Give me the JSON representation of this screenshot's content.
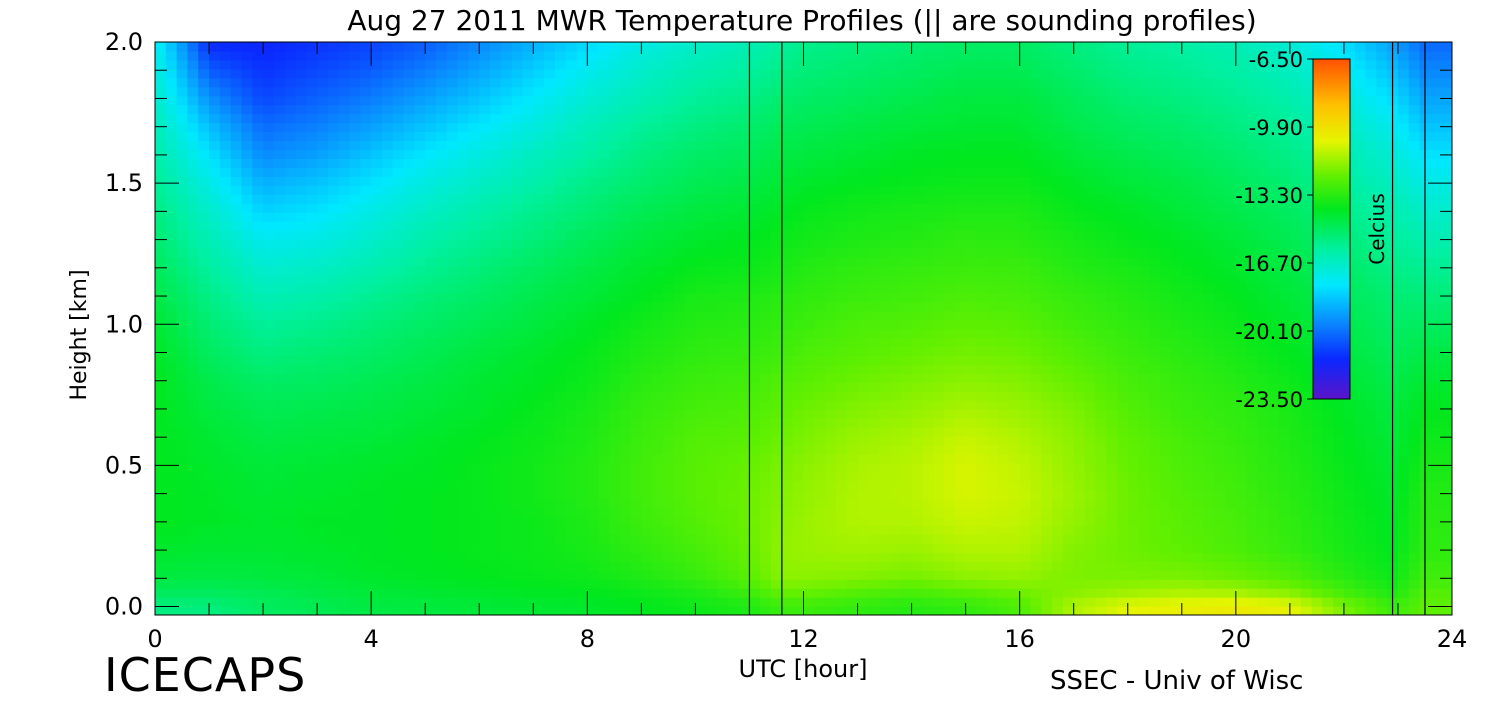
{
  "chart_data": {
    "type": "heatmap",
    "title": "Aug 27 2011 MWR Temperature Profiles (|| are sounding profiles)",
    "xlabel": "UTC [hour]",
    "ylabel": "Height [km]",
    "xlim": [
      0,
      24
    ],
    "ylim": [
      -0.03,
      2.0
    ],
    "xticks": [
      {
        "value": 0,
        "label": "0"
      },
      {
        "value": 4,
        "label": "4"
      },
      {
        "value": 8,
        "label": "8"
      },
      {
        "value": 12,
        "label": "12"
      },
      {
        "value": 16,
        "label": "16"
      },
      {
        "value": 20,
        "label": "20"
      },
      {
        "value": 24,
        "label": "24"
      }
    ],
    "yticks": [
      {
        "value": 0.0,
        "label": "0.0"
      },
      {
        "value": 0.5,
        "label": "0.5"
      },
      {
        "value": 1.0,
        "label": "1.0"
      },
      {
        "value": 1.5,
        "label": "1.5"
      },
      {
        "value": 2.0,
        "label": "2.0"
      }
    ],
    "colorbar": {
      "label": "Celcius",
      "min": -23.5,
      "max": -6.5,
      "ticks": [
        {
          "value": -6.5,
          "label": "-6.50"
        },
        {
          "value": -9.9,
          "label": "-9.90"
        },
        {
          "value": -13.3,
          "label": "-13.30"
        },
        {
          "value": -16.7,
          "label": "-16.70"
        },
        {
          "value": -20.1,
          "label": "-20.10"
        },
        {
          "value": -23.5,
          "label": "-23.50"
        }
      ],
      "stops": [
        {
          "value": -23.5,
          "color": "#5a14c8"
        },
        {
          "value": -21.5,
          "color": "#0a28ff"
        },
        {
          "value": -19.8,
          "color": "#0a82ff"
        },
        {
          "value": -17.8,
          "color": "#00e8ff"
        },
        {
          "value": -16.0,
          "color": "#00f0a0"
        },
        {
          "value": -14.0,
          "color": "#00e81e"
        },
        {
          "value": -12.3,
          "color": "#64f000"
        },
        {
          "value": -10.6,
          "color": "#e6f500"
        },
        {
          "value": -8.8,
          "color": "#ffc000"
        },
        {
          "value": -6.5,
          "color": "#ff5000"
        }
      ]
    },
    "sounding_times": [
      11.0,
      11.6,
      22.9,
      23.5
    ],
    "grid_x": [
      0,
      1,
      2,
      3,
      4,
      5,
      6,
      7,
      8,
      9,
      10,
      11,
      11.6,
      12,
      13,
      14,
      15,
      16,
      17,
      18,
      19,
      20,
      21,
      22,
      22.9,
      23.5,
      24
    ],
    "grid_y": [
      0.0,
      0.05,
      0.1,
      0.2,
      0.3,
      0.4,
      0.5,
      0.6,
      0.7,
      0.8,
      0.9,
      1.0,
      1.1,
      1.2,
      1.3,
      1.4,
      1.5,
      1.6,
      1.7,
      1.8,
      1.9,
      2.0
    ],
    "temperature": [
      [
        -15.5,
        -15.0,
        -14.5,
        -14.2,
        -14.0,
        -14.0,
        -14.0,
        -14.0,
        -14.0,
        -14.0,
        -14.1,
        -14.3,
        -14.6,
        -14.9,
        -15.2,
        -15.5,
        -15.8,
        -16.1,
        -16.4,
        -16.7,
        -17.0,
        -17.3
      ],
      [
        -15.5,
        -15.0,
        -14.6,
        -14.3,
        -14.1,
        -14.1,
        -14.2,
        -14.3,
        -14.5,
        -14.7,
        -15.0,
        -15.3,
        -15.6,
        -16.0,
        -16.4,
        -16.8,
        -17.3,
        -17.9,
        -18.6,
        -19.5,
        -20.5,
        -21.5
      ],
      [
        -15.0,
        -14.8,
        -14.5,
        -14.3,
        -14.2,
        -14.3,
        -14.4,
        -14.6,
        -14.8,
        -15.1,
        -15.5,
        -15.9,
        -16.4,
        -16.9,
        -17.5,
        -18.2,
        -18.9,
        -19.6,
        -20.2,
        -20.9,
        -21.3,
        -21.6
      ],
      [
        -14.8,
        -14.6,
        -14.4,
        -14.2,
        -14.1,
        -14.2,
        -14.3,
        -14.5,
        -14.7,
        -15.0,
        -15.3,
        -15.7,
        -16.2,
        -16.7,
        -17.3,
        -17.9,
        -18.5,
        -19.2,
        -19.8,
        -20.4,
        -20.9,
        -21.3
      ],
      [
        -14.6,
        -14.4,
        -14.2,
        -14.1,
        -14.1,
        -14.1,
        -14.2,
        -14.4,
        -14.6,
        -14.8,
        -15.1,
        -15.4,
        -15.8,
        -16.3,
        -16.8,
        -17.3,
        -17.9,
        -18.5,
        -19.2,
        -19.9,
        -20.5,
        -21.0
      ],
      [
        -14.5,
        -14.3,
        -14.1,
        -14.0,
        -14.0,
        -14.0,
        -14.1,
        -14.2,
        -14.4,
        -14.6,
        -14.8,
        -15.1,
        -15.4,
        -15.8,
        -16.2,
        -16.7,
        -17.2,
        -17.8,
        -18.5,
        -19.2,
        -19.9,
        -20.5
      ],
      [
        -14.4,
        -14.2,
        -14.0,
        -13.9,
        -13.9,
        -13.9,
        -13.9,
        -14.0,
        -14.2,
        -14.3,
        -14.5,
        -14.8,
        -15.1,
        -15.4,
        -15.8,
        -16.2,
        -16.7,
        -17.2,
        -17.8,
        -18.5,
        -19.1,
        -19.7
      ],
      [
        -14.3,
        -14.1,
        -13.9,
        -13.8,
        -13.8,
        -13.7,
        -13.7,
        -13.8,
        -13.9,
        -14.1,
        -14.2,
        -14.5,
        -14.7,
        -15.0,
        -15.4,
        -15.7,
        -16.2,
        -16.6,
        -17.2,
        -17.7,
        -18.3,
        -18.9
      ],
      [
        -14.2,
        -14.0,
        -13.8,
        -13.6,
        -13.5,
        -13.4,
        -13.4,
        -13.5,
        -13.6,
        -13.8,
        -13.9,
        -14.1,
        -14.4,
        -14.6,
        -14.9,
        -15.3,
        -15.6,
        -16.1,
        -16.5,
        -17.0,
        -17.5,
        -18.1
      ],
      [
        -14.0,
        -13.8,
        -13.5,
        -13.2,
        -13.0,
        -12.9,
        -12.9,
        -13.0,
        -13.1,
        -13.3,
        -13.5,
        -13.7,
        -14.0,
        -14.2,
        -14.5,
        -14.8,
        -15.2,
        -15.5,
        -15.9,
        -16.4,
        -16.8,
        -17.3
      ],
      [
        -13.8,
        -13.5,
        -13.1,
        -12.8,
        -12.6,
        -12.5,
        -12.5,
        -12.6,
        -12.8,
        -13.0,
        -13.2,
        -13.4,
        -13.6,
        -13.9,
        -14.2,
        -14.5,
        -14.8,
        -15.1,
        -15.5,
        -15.9,
        -16.3,
        -16.8
      ],
      [
        -13.5,
        -13.0,
        -12.5,
        -12.3,
        -12.2,
        -12.2,
        -12.3,
        -12.5,
        -12.7,
        -12.9,
        -13.1,
        -13.3,
        -13.5,
        -13.8,
        -14.0,
        -14.3,
        -14.6,
        -14.9,
        -15.2,
        -15.6,
        -16.0,
        -16.4
      ],
      [
        -13.0,
        -12.3,
        -11.8,
        -11.7,
        -11.8,
        -11.9,
        -12.0,
        -12.2,
        -12.4,
        -12.6,
        -12.9,
        -13.1,
        -13.3,
        -13.6,
        -13.8,
        -14.1,
        -14.3,
        -14.6,
        -14.9,
        -15.2,
        -15.6,
        -16.0
      ],
      [
        -13.0,
        -12.3,
        -11.8,
        -11.6,
        -11.6,
        -11.7,
        -11.8,
        -12.0,
        -12.2,
        -12.5,
        -12.7,
        -13.0,
        -13.2,
        -13.4,
        -13.7,
        -13.9,
        -14.2,
        -14.5,
        -14.8,
        -15.1,
        -15.4,
        -15.7
      ],
      [
        -13.2,
        -12.6,
        -11.9,
        -11.5,
        -11.3,
        -11.3,
        -11.4,
        -11.6,
        -11.9,
        -12.2,
        -12.5,
        -12.7,
        -13.0,
        -13.2,
        -13.5,
        -13.7,
        -14.0,
        -14.3,
        -14.6,
        -14.9,
        -15.2,
        -15.5
      ],
      [
        -13.4,
        -12.8,
        -12.1,
        -11.6,
        -11.3,
        -11.2,
        -11.2,
        -11.4,
        -11.7,
        -12.0,
        -12.3,
        -12.6,
        -12.9,
        -13.1,
        -13.4,
        -13.6,
        -13.9,
        -14.1,
        -14.4,
        -14.7,
        -15.0,
        -15.3
      ],
      [
        -13.2,
        -12.5,
        -11.8,
        -11.3,
        -11.0,
        -10.8,
        -10.8,
        -11.0,
        -11.4,
        -11.8,
        -12.1,
        -12.4,
        -12.7,
        -13.0,
        -13.2,
        -13.5,
        -13.8,
        -14.0,
        -14.3,
        -14.5,
        -14.8,
        -15.1
      ],
      [
        -12.7,
        -12.2,
        -11.7,
        -11.3,
        -11.1,
        -11.0,
        -11.1,
        -11.3,
        -11.6,
        -11.9,
        -12.2,
        -12.5,
        -12.8,
        -13.0,
        -13.3,
        -13.5,
        -13.8,
        -14.0,
        -14.3,
        -14.5,
        -14.8,
        -15.1
      ],
      [
        -11.3,
        -11.8,
        -12.0,
        -11.9,
        -11.7,
        -11.6,
        -11.7,
        -11.8,
        -12.0,
        -12.3,
        -12.6,
        -12.9,
        -13.1,
        -13.4,
        -13.6,
        -13.9,
        -14.1,
        -14.4,
        -14.7,
        -14.9,
        -15.2,
        -15.5
      ],
      [
        -10.6,
        -11.5,
        -12.0,
        -12.2,
        -12.2,
        -12.2,
        -12.3,
        -12.4,
        -12.6,
        -12.8,
        -13.0,
        -13.2,
        -13.4,
        -13.6,
        -13.9,
        -14.1,
        -14.4,
        -14.7,
        -15.0,
        -15.3,
        -15.6,
        -15.9
      ],
      [
        -10.4,
        -11.3,
        -12.0,
        -12.4,
        -12.5,
        -12.6,
        -12.7,
        -12.8,
        -13.0,
        -13.1,
        -13.3,
        -13.5,
        -13.7,
        -13.9,
        -14.1,
        -14.4,
        -14.6,
        -14.9,
        -15.2,
        -15.5,
        -15.8,
        -16.1
      ],
      [
        -10.2,
        -11.4,
        -12.2,
        -12.7,
        -12.8,
        -12.9,
        -13.0,
        -13.1,
        -13.2,
        -13.4,
        -13.6,
        -13.8,
        -14.0,
        -14.2,
        -14.4,
        -14.7,
        -14.9,
        -15.2,
        -15.5,
        -15.8,
        -16.1,
        -16.4
      ],
      [
        -10.5,
        -11.8,
        -12.6,
        -13.1,
        -13.2,
        -13.3,
        -13.4,
        -13.5,
        -13.6,
        -13.8,
        -14.0,
        -14.2,
        -14.4,
        -14.6,
        -14.8,
        -15.0,
        -15.3,
        -15.6,
        -15.9,
        -16.2,
        -16.6,
        -17.0
      ],
      [
        -12.0,
        -12.8,
        -13.3,
        -13.6,
        -13.7,
        -13.8,
        -13.9,
        -14.0,
        -14.1,
        -14.3,
        -14.5,
        -14.7,
        -14.9,
        -15.1,
        -15.4,
        -15.7,
        -16.0,
        -16.3,
        -16.7,
        -17.1,
        -17.5,
        -18.0
      ],
      [
        -13.0,
        -13.5,
        -13.8,
        -14.0,
        -14.1,
        -14.2,
        -14.3,
        -14.4,
        -14.5,
        -14.7,
        -14.9,
        -15.1,
        -15.3,
        -15.6,
        -15.9,
        -16.2,
        -16.6,
        -17.0,
        -17.5,
        -18.0,
        -18.6,
        -19.2
      ],
      [
        -12.4,
        -12.6,
        -12.9,
        -13.2,
        -13.3,
        -13.4,
        -13.6,
        -13.8,
        -14.0,
        -14.3,
        -14.6,
        -15.0,
        -15.4,
        -15.8,
        -16.3,
        -16.8,
        -17.3,
        -17.9,
        -18.5,
        -19.1,
        -19.7,
        -20.3
      ],
      [
        -12.4,
        -12.6,
        -12.9,
        -13.2,
        -13.3,
        -13.4,
        -13.6,
        -13.8,
        -14.0,
        -14.3,
        -14.6,
        -15.0,
        -15.4,
        -15.8,
        -16.3,
        -16.8,
        -17.3,
        -17.9,
        -18.5,
        -19.1,
        -19.7,
        -20.3
      ]
    ]
  },
  "footer": {
    "left_label": "ICECAPS",
    "right_label": "SSEC - Univ of Wisc"
  }
}
